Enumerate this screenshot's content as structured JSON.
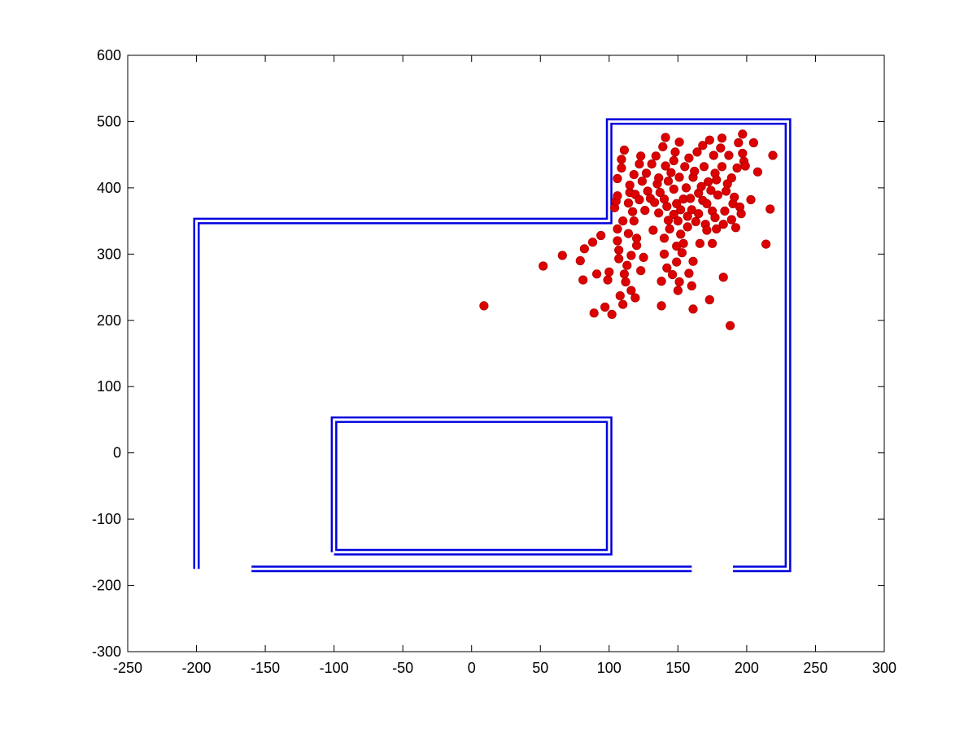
{
  "chart_data": {
    "type": "scatter",
    "title": "",
    "xlabel": "",
    "ylabel": "",
    "xlim": [
      -250,
      300
    ],
    "ylim": [
      -300,
      600
    ],
    "xticks": [
      -250,
      -200,
      -150,
      -100,
      -50,
      0,
      50,
      100,
      150,
      200,
      250,
      300
    ],
    "xtick_labels": [
      "-250",
      "-200",
      "-150",
      "-100",
      "-50",
      "0",
      "50",
      "100",
      "150",
      "200",
      "250",
      "300"
    ],
    "yticks": [
      -300,
      -200,
      -100,
      0,
      100,
      200,
      300,
      400,
      500,
      600
    ],
    "ytick_labels": [
      "-300",
      "-200",
      "-100",
      "0",
      "100",
      "200",
      "300",
      "400",
      "500",
      "600"
    ],
    "grid": false,
    "colors": {
      "walls": "#0000dd",
      "points": "#dd0000",
      "axes": "#000000",
      "background": "#ffffff"
    },
    "walls": [
      {
        "points": [
          [
            -200,
            -175
          ],
          [
            -200,
            350
          ],
          [
            100,
            350
          ],
          [
            100,
            500
          ],
          [
            230,
            500
          ],
          [
            230,
            -175
          ],
          [
            190,
            -175
          ]
        ]
      },
      {
        "points": [
          [
            -160,
            -175
          ],
          [
            160,
            -175
          ]
        ]
      },
      {
        "points": [
          [
            -100,
            -150
          ],
          [
            -100,
            50
          ],
          [
            100,
            50
          ],
          [
            100,
            -150
          ],
          [
            -100,
            -150
          ]
        ]
      }
    ],
    "particles": [
      [
        9,
        222
      ],
      [
        52,
        282
      ],
      [
        66,
        298
      ],
      [
        79,
        290
      ],
      [
        81,
        261
      ],
      [
        82,
        308
      ],
      [
        88,
        318
      ],
      [
        89,
        211
      ],
      [
        91,
        270
      ],
      [
        94,
        328
      ],
      [
        97,
        220
      ],
      [
        99,
        261
      ],
      [
        100,
        273
      ],
      [
        102,
        209
      ],
      [
        104,
        370
      ],
      [
        105,
        380
      ],
      [
        106,
        414
      ],
      [
        106,
        388
      ],
      [
        106,
        338
      ],
      [
        106,
        320
      ],
      [
        107,
        293
      ],
      [
        107,
        306
      ],
      [
        108,
        237
      ],
      [
        109,
        443
      ],
      [
        109,
        430
      ],
      [
        110,
        224
      ],
      [
        110,
        350
      ],
      [
        111,
        457
      ],
      [
        111,
        270
      ],
      [
        112,
        258
      ],
      [
        113,
        283
      ],
      [
        114,
        377
      ],
      [
        114,
        331
      ],
      [
        115,
        393
      ],
      [
        115,
        404
      ],
      [
        116,
        245
      ],
      [
        116,
        298
      ],
      [
        117,
        364
      ],
      [
        118,
        420
      ],
      [
        118,
        350
      ],
      [
        119,
        234
      ],
      [
        119,
        390
      ],
      [
        120,
        313
      ],
      [
        120,
        324
      ],
      [
        122,
        436
      ],
      [
        122,
        382
      ],
      [
        123,
        448
      ],
      [
        123,
        275
      ],
      [
        124,
        410
      ],
      [
        125,
        295
      ],
      [
        126,
        366
      ],
      [
        127,
        422
      ],
      [
        128,
        395
      ],
      [
        130,
        384
      ],
      [
        131,
        436
      ],
      [
        132,
        336
      ],
      [
        133,
        378
      ],
      [
        134,
        448
      ],
      [
        135,
        406
      ],
      [
        136,
        362
      ],
      [
        136,
        415
      ],
      [
        137,
        393
      ],
      [
        138,
        222
      ],
      [
        138,
        259
      ],
      [
        139,
        462
      ],
      [
        140,
        324
      ],
      [
        140,
        383
      ],
      [
        140,
        300
      ],
      [
        141,
        476
      ],
      [
        141,
        433
      ],
      [
        142,
        279
      ],
      [
        142,
        372
      ],
      [
        143,
        410
      ],
      [
        143,
        351
      ],
      [
        144,
        338
      ],
      [
        145,
        423
      ],
      [
        146,
        269
      ],
      [
        147,
        441
      ],
      [
        147,
        398
      ],
      [
        147,
        360
      ],
      [
        148,
        454
      ],
      [
        149,
        312
      ],
      [
        149,
        288
      ],
      [
        149,
        376
      ],
      [
        150,
        245
      ],
      [
        150,
        350
      ],
      [
        151,
        416
      ],
      [
        151,
        258
      ],
      [
        151,
        469
      ],
      [
        152,
        367
      ],
      [
        152,
        330
      ],
      [
        153,
        302
      ],
      [
        154,
        383
      ],
      [
        154,
        316
      ],
      [
        155,
        432
      ],
      [
        156,
        400
      ],
      [
        157,
        357
      ],
      [
        157,
        341
      ],
      [
        158,
        271
      ],
      [
        158,
        445
      ],
      [
        159,
        384
      ],
      [
        160,
        252
      ],
      [
        160,
        367
      ],
      [
        161,
        217
      ],
      [
        161,
        416
      ],
      [
        161,
        289
      ],
      [
        162,
        425
      ],
      [
        163,
        349
      ],
      [
        164,
        454
      ],
      [
        165,
        392
      ],
      [
        165,
        361
      ],
      [
        166,
        316
      ],
      [
        167,
        402
      ],
      [
        168,
        464
      ],
      [
        168,
        381
      ],
      [
        169,
        432
      ],
      [
        170,
        345
      ],
      [
        171,
        336
      ],
      [
        171,
        376
      ],
      [
        172,
        409
      ],
      [
        173,
        472
      ],
      [
        173,
        231
      ],
      [
        174,
        396
      ],
      [
        175,
        365
      ],
      [
        175,
        316
      ],
      [
        176,
        449
      ],
      [
        177,
        355
      ],
      [
        177,
        422
      ],
      [
        178,
        338
      ],
      [
        178,
        412
      ],
      [
        179,
        389
      ],
      [
        181,
        460
      ],
      [
        182,
        432
      ],
      [
        182,
        475
      ],
      [
        183,
        345
      ],
      [
        183,
        265
      ],
      [
        184,
        365
      ],
      [
        185,
        395
      ],
      [
        186,
        406
      ],
      [
        187,
        449
      ],
      [
        188,
        192
      ],
      [
        189,
        352
      ],
      [
        189,
        415
      ],
      [
        190,
        376
      ],
      [
        191,
        386
      ],
      [
        192,
        340
      ],
      [
        193,
        430
      ],
      [
        194,
        468
      ],
      [
        195,
        371
      ],
      [
        196,
        361
      ],
      [
        197,
        452
      ],
      [
        197,
        481
      ],
      [
        198,
        440
      ],
      [
        199,
        433
      ],
      [
        203,
        382
      ],
      [
        205,
        468
      ],
      [
        208,
        424
      ],
      [
        214,
        315
      ],
      [
        217,
        368
      ],
      [
        219,
        449
      ]
    ]
  }
}
